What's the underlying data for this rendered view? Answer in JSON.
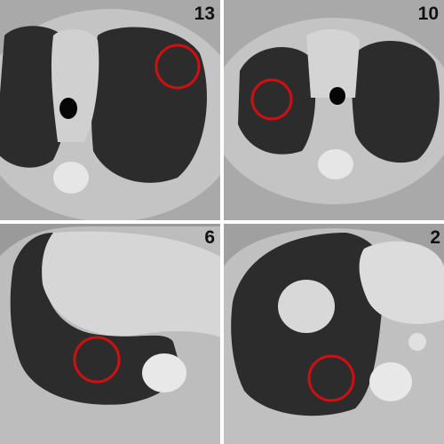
{
  "panels": [
    {
      "label": "13"
    },
    {
      "label": "10"
    },
    {
      "label": "6"
    },
    {
      "label": "2"
    }
  ]
}
